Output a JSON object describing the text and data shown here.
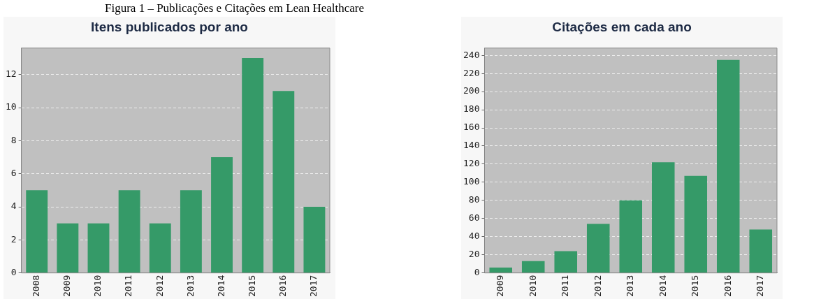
{
  "chart_data": [
    {
      "type": "bar",
      "title": "Itens publicados por ano",
      "annotations": [
        "Figura 1 – Publicações e Citações em Lean Healthcare"
      ],
      "categories": [
        "2008",
        "2009",
        "2010",
        "2011",
        "2012",
        "2013",
        "2014",
        "2015",
        "2016",
        "2017"
      ],
      "values": [
        5,
        3,
        3,
        5,
        3,
        5,
        7,
        13,
        11,
        4
      ],
      "color": "#359a68",
      "ylim": [
        0,
        13.6
      ],
      "yticks": [
        0,
        2,
        4,
        6,
        8,
        10,
        12
      ],
      "grid": "y"
    },
    {
      "type": "bar",
      "title": "Citações em cada ano",
      "categories": [
        "2009",
        "2010",
        "2011",
        "2012",
        "2013",
        "2014",
        "2015",
        "2016",
        "2017"
      ],
      "values": [
        6,
        13,
        24,
        54,
        80,
        122,
        107,
        235,
        48
      ],
      "color": "#359a68",
      "ylim": [
        0,
        248
      ],
      "yticks": [
        0,
        20,
        40,
        60,
        80,
        100,
        120,
        140,
        160,
        180,
        200,
        220,
        240
      ],
      "grid": "y"
    }
  ]
}
